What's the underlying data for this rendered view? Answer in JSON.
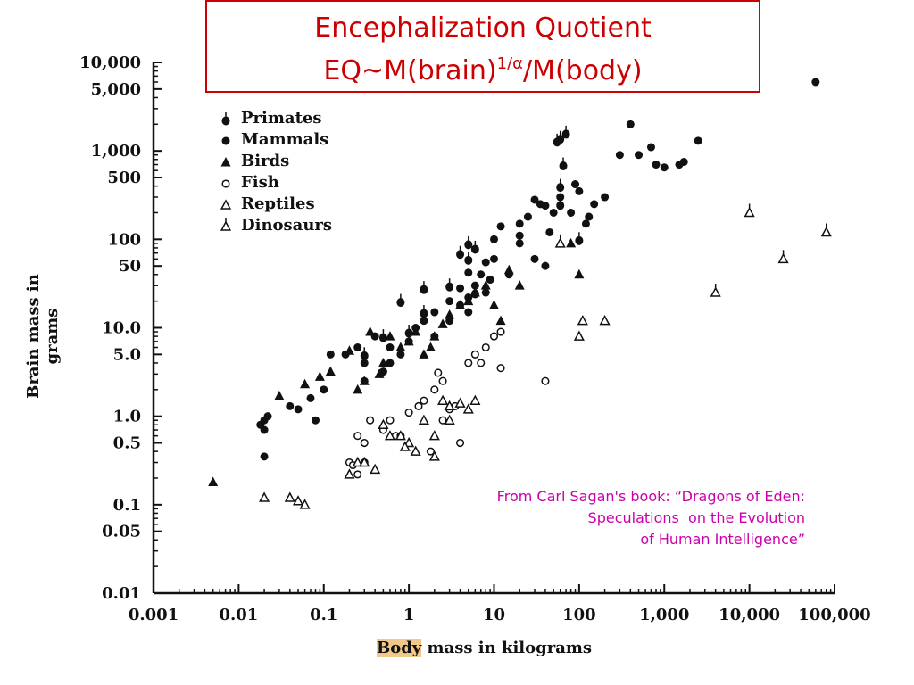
{
  "title": {
    "line1": "Encephalization Quotient",
    "line2_prefix": "EQ~M(brain)",
    "line2_sup": "1/α",
    "line2_suffix": "/M(body)"
  },
  "caption": {
    "line1": "From Carl Sagan's book: “Dragons of Eden:",
    "line2": "Speculations  on the Evolution",
    "line3": "of Human Intelligence”"
  },
  "colors": {
    "title": "#cc0000",
    "caption": "#cc00aa",
    "marks": "#111111",
    "highlight": "#f2c98a"
  },
  "chart_data": {
    "type": "scatter",
    "xscale": "log",
    "yscale": "log",
    "xlim": [
      0.001,
      100000
    ],
    "ylim": [
      0.01,
      10000
    ],
    "xticks": [
      "0.001",
      "0.01",
      "0.1",
      "1",
      "10",
      "100",
      "1,000",
      "10,000",
      "100,000"
    ],
    "yticks": [
      "0.01",
      "0.05",
      "0.1",
      "0.5",
      "1.0",
      "5.0",
      "10.0",
      "50",
      "100",
      "500",
      "1,000",
      "5,000",
      "10,000"
    ],
    "xlabel_highlight": "Body",
    "xlabel_rest": " mass in kilograms",
    "ylabel": "Brain mass in grams",
    "legend": [
      {
        "name": "Primates",
        "marker": "primate"
      },
      {
        "name": "Mammals",
        "marker": "mammal"
      },
      {
        "name": "Birds",
        "marker": "bird"
      },
      {
        "name": "Fish",
        "marker": "fish"
      },
      {
        "name": "Reptiles",
        "marker": "reptile"
      },
      {
        "name": "Dinosaurs",
        "marker": "dinosaur"
      }
    ],
    "series": [
      {
        "name": "Primates",
        "marker": "primate",
        "points": [
          [
            0.3,
            5
          ],
          [
            0.5,
            8
          ],
          [
            1,
            9
          ],
          [
            1.5,
            15
          ],
          [
            3,
            30
          ],
          [
            4,
            70
          ],
          [
            5,
            90
          ],
          [
            5,
            60
          ],
          [
            6,
            80
          ],
          [
            6,
            25
          ],
          [
            60,
            400
          ],
          [
            60,
            1400
          ],
          [
            70,
            1600
          ],
          [
            55,
            1300
          ],
          [
            65,
            700
          ],
          [
            60,
            250
          ],
          [
            100,
            100
          ],
          [
            0.8,
            20
          ],
          [
            1.5,
            28
          ]
        ]
      },
      {
        "name": "Mammals",
        "marker": "mammal",
        "points": [
          [
            0.02,
            0.9
          ],
          [
            0.02,
            0.7
          ],
          [
            0.018,
            0.8
          ],
          [
            0.022,
            1.0
          ],
          [
            0.02,
            0.35
          ],
          [
            0.04,
            1.3
          ],
          [
            0.05,
            1.2
          ],
          [
            0.07,
            1.6
          ],
          [
            0.08,
            0.9
          ],
          [
            0.1,
            2
          ],
          [
            0.12,
            5
          ],
          [
            0.18,
            5
          ],
          [
            0.25,
            6
          ],
          [
            0.3,
            4
          ],
          [
            0.4,
            8
          ],
          [
            0.6,
            6
          ],
          [
            0.8,
            5
          ],
          [
            1,
            7
          ],
          [
            1.2,
            10
          ],
          [
            1.5,
            12
          ],
          [
            2,
            15
          ],
          [
            3,
            20
          ],
          [
            3,
            12
          ],
          [
            4,
            18
          ],
          [
            4,
            28
          ],
          [
            5,
            15
          ],
          [
            5,
            22
          ],
          [
            6,
            30
          ],
          [
            7,
            40
          ],
          [
            8,
            55
          ],
          [
            10,
            60
          ],
          [
            10,
            100
          ],
          [
            12,
            140
          ],
          [
            20,
            150
          ],
          [
            25,
            180
          ],
          [
            30,
            280
          ],
          [
            35,
            250
          ],
          [
            40,
            50
          ],
          [
            45,
            120
          ],
          [
            50,
            200
          ],
          [
            80,
            200
          ],
          [
            100,
            350
          ],
          [
            120,
            150
          ],
          [
            150,
            250
          ],
          [
            200,
            300
          ],
          [
            300,
            900
          ],
          [
            400,
            2000
          ],
          [
            500,
            900
          ],
          [
            700,
            1100
          ],
          [
            800,
            700
          ],
          [
            1000,
            650
          ],
          [
            1500,
            700
          ],
          [
            1700,
            750
          ],
          [
            2500,
            1300
          ],
          [
            60000,
            6000
          ],
          [
            20,
            90
          ],
          [
            30,
            60
          ],
          [
            15,
            40
          ],
          [
            8,
            25
          ],
          [
            9,
            35
          ],
          [
            2,
            8
          ],
          [
            0.6,
            4
          ],
          [
            0.3,
            2.5
          ],
          [
            0.5,
            3.2
          ],
          [
            5,
            42
          ],
          [
            20,
            110
          ],
          [
            40,
            240
          ],
          [
            60,
            300
          ],
          [
            90,
            420
          ],
          [
            130,
            180
          ]
        ]
      },
      {
        "name": "Birds",
        "marker": "bird",
        "points": [
          [
            0.005,
            0.18
          ],
          [
            0.03,
            1.7
          ],
          [
            0.06,
            2.3
          ],
          [
            0.09,
            2.8
          ],
          [
            0.12,
            3.2
          ],
          [
            0.2,
            5.5
          ],
          [
            0.3,
            2.5
          ],
          [
            0.35,
            9
          ],
          [
            0.5,
            4
          ],
          [
            0.6,
            8
          ],
          [
            0.8,
            6
          ],
          [
            1,
            7
          ],
          [
            1.2,
            9
          ],
          [
            1.5,
            5
          ],
          [
            2,
            8
          ],
          [
            2.5,
            11
          ],
          [
            3,
            14
          ],
          [
            4,
            18
          ],
          [
            5,
            20
          ],
          [
            6,
            25
          ],
          [
            8,
            30
          ],
          [
            10,
            18
          ],
          [
            12,
            12
          ],
          [
            15,
            45
          ],
          [
            20,
            30
          ],
          [
            80,
            90
          ],
          [
            100,
            40
          ],
          [
            0.45,
            3
          ],
          [
            0.25,
            2
          ],
          [
            1.8,
            6
          ]
        ]
      },
      {
        "name": "Fish",
        "marker": "fish",
        "points": [
          [
            0.2,
            0.3
          ],
          [
            0.22,
            0.28
          ],
          [
            0.25,
            0.6
          ],
          [
            0.25,
            0.22
          ],
          [
            0.3,
            0.3
          ],
          [
            0.3,
            0.5
          ],
          [
            0.35,
            0.9
          ],
          [
            0.5,
            0.7
          ],
          [
            0.6,
            0.9
          ],
          [
            0.7,
            0.6
          ],
          [
            0.8,
            0.6
          ],
          [
            1,
            1.1
          ],
          [
            1.3,
            1.3
          ],
          [
            1.5,
            1.5
          ],
          [
            2,
            2
          ],
          [
            2.5,
            0.9
          ],
          [
            3,
            1.2
          ],
          [
            3.5,
            1.3
          ],
          [
            4,
            0.5
          ],
          [
            5,
            4
          ],
          [
            6,
            5
          ],
          [
            7,
            4
          ],
          [
            8,
            6
          ],
          [
            10,
            8
          ],
          [
            12,
            9
          ],
          [
            12,
            3.5
          ],
          [
            40,
            2.5
          ],
          [
            2.2,
            3.1
          ],
          [
            1.8,
            0.4
          ],
          [
            2.5,
            2.5
          ]
        ]
      },
      {
        "name": "Reptiles",
        "marker": "reptile",
        "points": [
          [
            0.02,
            0.12
          ],
          [
            0.04,
            0.12
          ],
          [
            0.05,
            0.11
          ],
          [
            0.06,
            0.1
          ],
          [
            0.2,
            0.22
          ],
          [
            0.25,
            0.3
          ],
          [
            0.3,
            0.3
          ],
          [
            0.4,
            0.25
          ],
          [
            0.5,
            0.8
          ],
          [
            0.6,
            0.6
          ],
          [
            0.8,
            0.6
          ],
          [
            1,
            0.5
          ],
          [
            1.5,
            0.9
          ],
          [
            2,
            0.6
          ],
          [
            2.5,
            1.5
          ],
          [
            3,
            1.3
          ],
          [
            4,
            1.4
          ],
          [
            5,
            1.2
          ],
          [
            6,
            1.5
          ],
          [
            2,
            0.35
          ],
          [
            3,
            0.9
          ],
          [
            100,
            8
          ],
          [
            110,
            12
          ],
          [
            200,
            12
          ],
          [
            0.9,
            0.45
          ],
          [
            1.2,
            0.4
          ]
        ]
      },
      {
        "name": "Dinosaurs",
        "marker": "dinosaur",
        "points": [
          [
            60,
            90
          ],
          [
            4000,
            25
          ],
          [
            10000,
            200
          ],
          [
            25000,
            60
          ],
          [
            80000,
            120
          ]
        ]
      }
    ]
  }
}
